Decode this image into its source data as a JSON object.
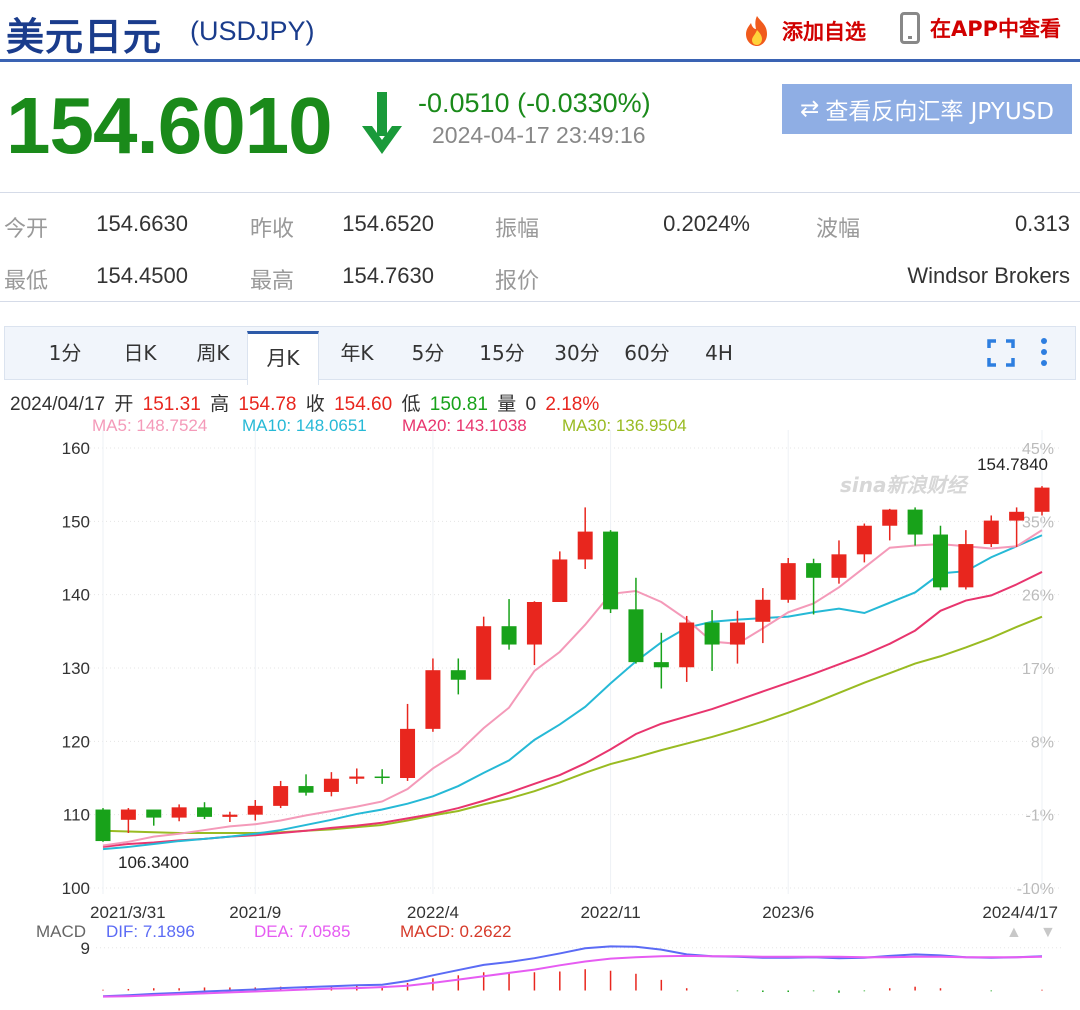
{
  "header": {
    "title": "美元日元",
    "symbol": "(USDJPY)",
    "add_fav": "添加自选",
    "app_view": "在APP中查看"
  },
  "quote": {
    "price": "154.6010",
    "change": "-0.0510 (-0.0330%)",
    "timestamp": "2024-04-17 23:49:16",
    "reverse_button": "查看反向汇率 JPYUSD",
    "down_color": "#1a8a1a"
  },
  "stats": {
    "open_label": "今开",
    "open": "154.6630",
    "prev_close_label": "昨收",
    "prev_close": "154.6520",
    "amplitude_label": "振幅",
    "amplitude": "0.2024%",
    "range_label": "波幅",
    "range": "0.313",
    "low_label": "最低",
    "low": "154.4500",
    "high_label": "最高",
    "high": "154.7630",
    "quote_label": "报价",
    "quote_source": "Windsor Brokers"
  },
  "tabs": [
    "1分",
    "日K",
    "周K",
    "月K",
    "年K",
    "5分",
    "15分",
    "30分",
    "60分",
    "4H"
  ],
  "active_tab": "月K",
  "info": {
    "date": "2024/04/17",
    "open_label": "开",
    "open": "151.31",
    "high_label": "高",
    "high": "154.78",
    "close_label": "收",
    "close": "154.60",
    "low_label": "低",
    "low": "150.81",
    "vol_label": "量",
    "vol": "0",
    "pct": "2.18%"
  },
  "ma": {
    "ma5": "MA5: 148.7524",
    "ma10": "MA10: 148.0651",
    "ma20": "MA20: 143.1038",
    "ma30": "MA30: 136.9504"
  },
  "colors": {
    "up": "#e8261e",
    "down": "#18a21a",
    "ma5": "#f49ab9",
    "ma10": "#26b9d6",
    "ma20": "#e8356e",
    "ma30": "#99bb22",
    "dif": "#5b6bf5",
    "dea": "#e65cf2",
    "macd": "#d63a2a"
  },
  "watermark": "sina新浪财经",
  "chart_data": {
    "type": "candlestick",
    "ylim": [
      100,
      160
    ],
    "y_ticks": [
      "160",
      "150",
      "140",
      "130",
      "120",
      "110",
      "100"
    ],
    "pct_ticks": [
      "45%",
      "35%",
      "26%",
      "17%",
      "8%",
      "-1%",
      "-10%"
    ],
    "x_ticks": [
      "2021/3/31",
      "2021/9",
      "2022/4",
      "2022/11",
      "2023/6",
      "2024/4/17"
    ],
    "max_label": "154.7840",
    "min_label": "106.3400",
    "candles": [
      [
        110.7,
        106.4,
        110.9,
        106.3
      ],
      [
        109.3,
        110.7,
        110.9,
        107.5
      ],
      [
        110.7,
        109.6,
        110.4,
        108.5
      ],
      [
        109.6,
        111.0,
        111.4,
        109.1
      ],
      [
        111.0,
        109.7,
        111.7,
        109.4
      ],
      [
        109.7,
        110.0,
        110.4,
        109.0
      ],
      [
        110.0,
        111.2,
        112.0,
        109.2
      ],
      [
        111.2,
        113.9,
        114.6,
        110.9
      ],
      [
        113.9,
        113.0,
        115.5,
        112.6
      ],
      [
        113.1,
        114.9,
        115.8,
        112.5
      ],
      [
        114.9,
        115.2,
        116.3,
        114.2
      ],
      [
        115.2,
        115.0,
        116.2,
        114.2
      ],
      [
        115.0,
        121.7,
        125.1,
        114.6
      ],
      [
        121.7,
        129.7,
        131.3,
        121.3
      ],
      [
        129.7,
        128.4,
        131.3,
        126.4
      ],
      [
        128.4,
        135.7,
        137.0,
        128.6
      ],
      [
        135.7,
        133.2,
        139.4,
        132.5
      ],
      [
        133.2,
        139.0,
        139.1,
        130.4
      ],
      [
        139.0,
        144.8,
        145.9,
        139.1
      ],
      [
        144.8,
        148.6,
        151.9,
        143.5
      ],
      [
        148.6,
        138.0,
        148.8,
        137.5
      ],
      [
        138.0,
        130.8,
        142.3,
        130.6
      ],
      [
        130.8,
        130.1,
        134.8,
        127.2
      ],
      [
        130.1,
        136.2,
        137.1,
        128.1
      ],
      [
        136.2,
        133.2,
        137.9,
        129.6
      ],
      [
        133.2,
        136.2,
        137.8,
        130.6
      ],
      [
        136.3,
        139.3,
        140.9,
        133.4
      ],
      [
        139.3,
        144.3,
        145.0,
        138.9
      ],
      [
        144.3,
        142.3,
        144.9,
        137.3
      ],
      [
        142.3,
        145.5,
        147.4,
        141.5
      ],
      [
        145.5,
        149.4,
        149.7,
        144.4
      ],
      [
        149.4,
        151.6,
        151.7,
        147.4
      ],
      [
        151.6,
        148.2,
        151.9,
        146.7
      ],
      [
        148.2,
        141.0,
        149.4,
        140.6
      ],
      [
        141.0,
        146.9,
        148.8,
        140.7
      ],
      [
        146.9,
        150.1,
        150.8,
        146.5
      ],
      [
        150.1,
        151.3,
        151.9,
        146.5
      ],
      [
        151.3,
        154.6,
        154.8,
        150.8
      ]
    ],
    "ma5": [
      105.8,
      106.3,
      107.0,
      107.4,
      107.9,
      108.4,
      108.7,
      109.2,
      109.9,
      110.5,
      111.1,
      111.8,
      113.5,
      116.3,
      118.5,
      121.8,
      124.6,
      129.6,
      132.2,
      135.9,
      140.1,
      140.5,
      139.0,
      136.6,
      133.6,
      133.3,
      135.4,
      137.6,
      138.8,
      141.0,
      143.7,
      146.4,
      146.7,
      146.9,
      146.6,
      146.3,
      146.6,
      148.8
    ],
    "ma10": [
      105.3,
      105.6,
      106.0,
      106.4,
      106.7,
      107.0,
      107.4,
      107.9,
      108.6,
      109.3,
      110.1,
      110.7,
      111.5,
      112.5,
      113.9,
      115.7,
      117.4,
      120.2,
      122.3,
      124.7,
      127.9,
      130.9,
      133.5,
      135.5,
      136.3,
      136.6,
      136.8,
      137.0,
      137.6,
      138.1,
      137.5,
      138.9,
      140.3,
      142.9,
      143.2,
      145.1,
      146.6,
      148.1
    ],
    "ma20": [
      105.6,
      106.0,
      106.2,
      106.5,
      106.7,
      107.0,
      107.2,
      107.5,
      107.8,
      108.2,
      108.5,
      108.9,
      109.5,
      110.1,
      110.9,
      111.9,
      113.0,
      114.2,
      115.4,
      117.0,
      118.9,
      121.0,
      122.4,
      123.4,
      124.4,
      125.6,
      126.8,
      128.0,
      129.2,
      130.5,
      131.8,
      133.3,
      135.1,
      137.8,
      139.2,
      139.9,
      141.4,
      143.1
    ],
    "ma30": [
      107.8,
      107.7,
      107.6,
      107.5,
      107.5,
      107.5,
      107.5,
      107.6,
      107.8,
      108.0,
      108.3,
      108.6,
      109.2,
      109.9,
      110.5,
      111.4,
      112.2,
      113.2,
      114.4,
      115.7,
      116.9,
      117.8,
      118.8,
      119.7,
      120.6,
      121.6,
      122.7,
      123.9,
      125.2,
      126.6,
      128.0,
      129.3,
      130.6,
      131.6,
      132.8,
      134.1,
      135.6,
      137.0
    ]
  },
  "macd_data": {
    "label": "MACD",
    "dif": "DIF: 7.1896",
    "dea": "DEA: 7.0585",
    "macd": "MACD: 0.2622",
    "y_tick": "9",
    "dif_values": [
      -1.2,
      -1.0,
      -0.7,
      -0.5,
      -0.2,
      0.0,
      0.2,
      0.5,
      0.7,
      0.9,
      1.1,
      1.2,
      2.0,
      3.2,
      4.3,
      5.4,
      6.0,
      6.8,
      7.8,
      8.9,
      9.3,
      9.2,
      8.6,
      7.6,
      7.2,
      7.1,
      6.9,
      6.9,
      7.0,
      6.8,
      6.9,
      7.3,
      7.6,
      7.4,
      7.0,
      6.9,
      7.0,
      7.2
    ],
    "dea_values": [
      -1.3,
      -1.2,
      -1.0,
      -0.8,
      -0.6,
      -0.4,
      -0.2,
      0.0,
      0.2,
      0.4,
      0.5,
      0.7,
      1.0,
      1.6,
      2.3,
      3.0,
      3.7,
      4.4,
      5.3,
      6.1,
      6.7,
      7.0,
      7.2,
      7.3,
      7.2,
      7.2,
      7.1,
      7.1,
      7.1,
      7.1,
      7.0,
      7.0,
      7.1,
      7.1,
      7.0,
      7.0,
      7.0,
      7.1
    ],
    "hist_values": [
      0.1,
      0.2,
      0.3,
      0.3,
      0.4,
      0.4,
      0.4,
      0.5,
      0.5,
      0.5,
      0.6,
      0.5,
      1.0,
      1.6,
      2.0,
      2.4,
      2.3,
      2.4,
      2.5,
      2.8,
      2.6,
      2.2,
      1.4,
      0.3,
      0.0,
      -0.1,
      -0.2,
      -0.2,
      -0.1,
      -0.3,
      -0.1,
      0.3,
      0.5,
      0.3,
      0.0,
      -0.1,
      0.0,
      0.1
    ]
  }
}
